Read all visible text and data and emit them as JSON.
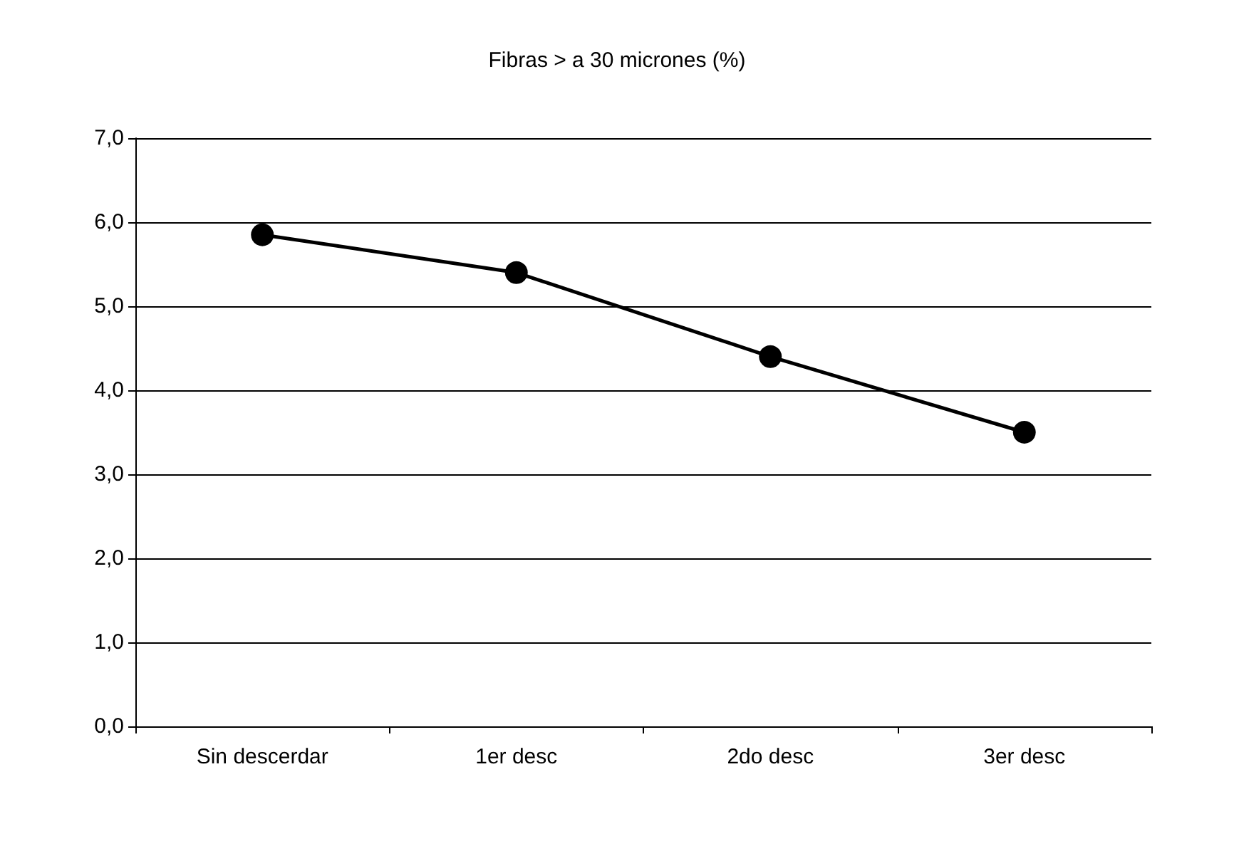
{
  "chart_data": {
    "type": "line",
    "title": "Fibras > a 30 micrones (%)",
    "categories": [
      "Sin descerdar",
      "1er desc",
      "2do desc",
      "3er desc"
    ],
    "series": [
      {
        "color": "#000000",
        "values": [
          5.85,
          5.4,
          4.4,
          3.5
        ]
      }
    ],
    "ylim": [
      0,
      7
    ],
    "yticks": [
      {
        "value": 0,
        "label": "0,0"
      },
      {
        "value": 1,
        "label": "1,0"
      },
      {
        "value": 2,
        "label": "2,0"
      },
      {
        "value": 3,
        "label": "3,0"
      },
      {
        "value": 4,
        "label": "4,0"
      },
      {
        "value": 5,
        "label": "5,0"
      },
      {
        "value": 6,
        "label": "6,0"
      },
      {
        "value": 7,
        "label": "7,0"
      }
    ],
    "grid": "y",
    "marker": "circle",
    "line_style": "solid"
  }
}
